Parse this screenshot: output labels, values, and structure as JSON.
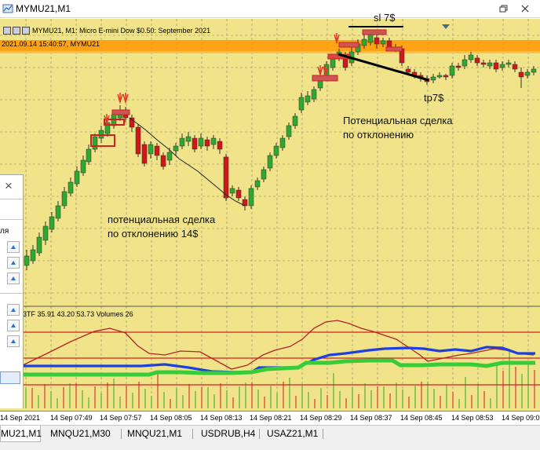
{
  "window": {
    "title": "MYMU21,M1"
  },
  "chart": {
    "symbol_description": "MYMU21, M1:  Micro E-mini Dow $0.50: September 2021",
    "time_tag": "2021.09.14 15:40:57, MYMU21",
    "indicator_label": "3TF 35.91 43.20 53.73 Volumes 26",
    "background_color": "#f0e38a",
    "bull_color": "#2fa82f",
    "bear_color": "#d01818",
    "annotations": {
      "sl": "sl 7$",
      "tp": "tp7$",
      "deal1_line1": "Потенциальная сделка",
      "deal1_line2": "по отклонению",
      "deal2_line1": "потенциальная сделка",
      "deal2_line2": "по отклонению 14$"
    }
  },
  "time_axis": {
    "ticks": [
      "14 Sep 2021",
      "14 Sep 07:49",
      "14 Sep 07:57",
      "14 Sep 08:05",
      "14 Sep 08:13",
      "14 Sep 08:21",
      "14 Sep 08:29",
      "14 Sep 08:37",
      "14 Sep 08:45",
      "14 Sep 08:53",
      "14 Sep 09:0"
    ]
  },
  "tabs": [
    {
      "label": "MU21,M1",
      "active": true
    },
    {
      "label": "MNQU21,M30",
      "active": false
    },
    {
      "label": "MNQU21,M1",
      "active": false
    },
    {
      "label": "USDRUB,H4",
      "active": false
    },
    {
      "label": "USAZ21,M1",
      "active": false
    }
  ],
  "side_panel": {
    "partial_word": "ля"
  }
}
